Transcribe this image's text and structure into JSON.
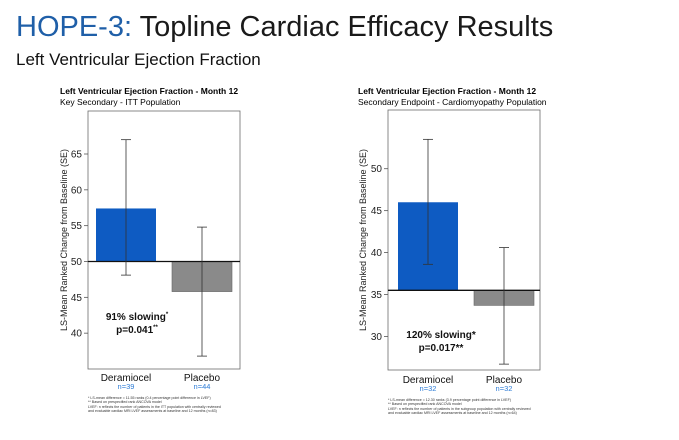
{
  "slide": {
    "title_highlight": "HOPE-3:",
    "title_rest": " Topline Cardiac Efficacy Results",
    "subtitle": "Left Ventricular Ejection Fraction"
  },
  "colors": {
    "title_accent": "#1f5fa8",
    "deramiocel_bar": "#0e5bc2",
    "placebo_bar": "#8a8a8a",
    "n_label": "#2e7cd6"
  },
  "chart_data": [
    {
      "type": "bar",
      "title": "Left Ventricular Ejection Fraction - Month 12",
      "subtitle": "Key Secondary - ITT Population",
      "ylabel": "LS-Mean Ranked Change from Baseline (SE)",
      "categories": [
        "Deramiocel",
        "Placebo"
      ],
      "n_labels": [
        "n=39",
        "n=44"
      ],
      "baseline": 50,
      "values": [
        57.4,
        45.8
      ],
      "error_low": [
        48.1,
        36.8
      ],
      "error_high": [
        67.0,
        54.8
      ],
      "ylim": [
        35,
        71
      ],
      "yticks": [
        40,
        45,
        50,
        55,
        60,
        65
      ],
      "grid": false,
      "annotation_line1": "91% slowing",
      "annotation_sup1": "*",
      "annotation_line2": "p=0.041",
      "annotation_sup2": "**",
      "footnotes": [
        "* LS-mean difference = 11.55 ranks (0.4 percentage point difference in LVEF)",
        "** Based on prespecified rank ANCOVA model",
        "LVEF: n reflects the number of patients in the ITT population with centrally reviewed",
        "and evaluable cardiac MRI LVEF assessments at baseline and 12 months (n=83)"
      ]
    },
    {
      "type": "bar",
      "title": "Left Ventricular Ejection Fraction - Month 12",
      "subtitle": "Secondary Endpoint - Cardiomyopathy Population",
      "ylabel": "LS-Mean Ranked Change from Baseline (SE)",
      "categories": [
        "Deramiocel",
        "Placebo"
      ],
      "n_labels": [
        "n=32",
        "n=32"
      ],
      "baseline": 35.5,
      "values": [
        46.0,
        33.7
      ],
      "error_low": [
        38.6,
        26.7
      ],
      "error_high": [
        53.5,
        40.6
      ],
      "ylim": [
        26,
        57
      ],
      "yticks": [
        30,
        35,
        40,
        45,
        50
      ],
      "grid": false,
      "annotation_line1": "120% slowing*",
      "annotation_sup1": "",
      "annotation_line2": "p=0.017**",
      "annotation_sup2": "",
      "footnotes": [
        "* LS-mean difference = 12.30 ranks (3.9 percentage point difference in LVEF)",
        "** Based on prespecified rank ANCOVA model",
        "LVEF: n reflects the number of patients in the subgroup population with centrally reviewed",
        "and evaluable cardiac MRI LVEF assessments at baseline and 12 months (n=64)"
      ]
    }
  ]
}
